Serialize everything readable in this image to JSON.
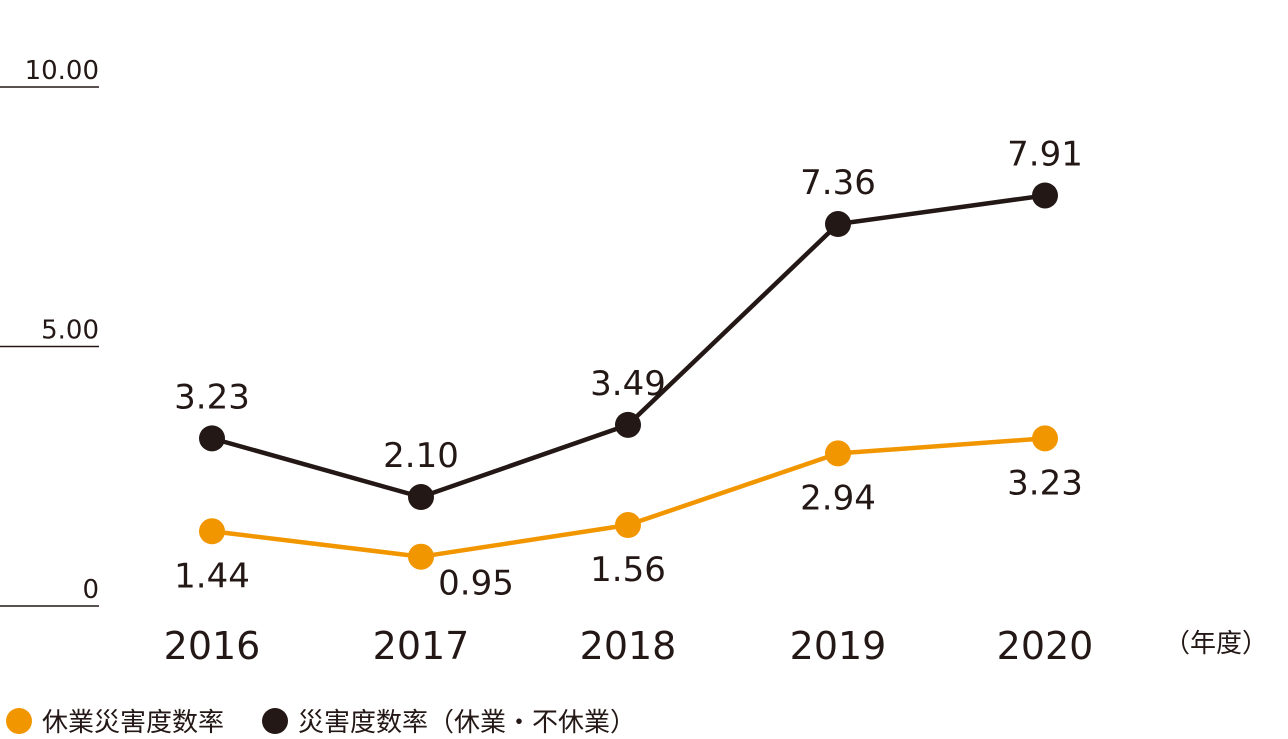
{
  "chart_data": {
    "type": "line",
    "x": [
      "2016",
      "2017",
      "2018",
      "2019",
      "2020"
    ],
    "x_unit": "（年度）",
    "y_ticks": [
      "10.00",
      "5.00",
      "0"
    ],
    "ylim": [
      0,
      10
    ],
    "grid": false,
    "legend_position": "bottom-left",
    "series": [
      {
        "name": "休業災害度数率",
        "color": "#F29600",
        "values": [
          1.44,
          0.95,
          1.56,
          2.94,
          3.23
        ],
        "labels": [
          "1.44",
          "0.95",
          "1.56",
          "2.94",
          "3.23"
        ]
      },
      {
        "name": "災害度数率（休業・不休業）",
        "color": "#231815",
        "values": [
          3.23,
          2.1,
          3.49,
          7.36,
          7.91
        ],
        "labels": [
          "3.23",
          "2.10",
          "3.49",
          "7.36",
          "7.91"
        ]
      }
    ]
  }
}
